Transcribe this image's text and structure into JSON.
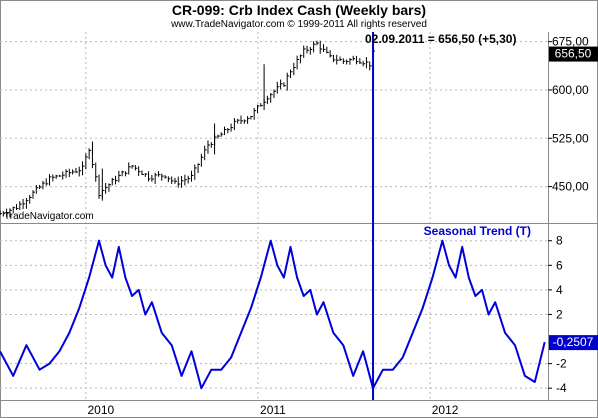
{
  "header": {
    "title": "CR-099:  Crb Index Cash  (Weekly bars)",
    "copyright": "www.TradeNavigator.com © 1999-2011 All rights reserved"
  },
  "watermark": "TradeNavigator.com",
  "cursor_readout": "02.09.2011 = 656,50 (+5,30)",
  "colors": {
    "price": "#000000",
    "seasonal": "#0000dd",
    "cursor": "#0000cc",
    "price_badge": "#000000",
    "seasonal_badge": "#0000cc",
    "grid": "#b8b8b8",
    "background": "#ffffff"
  },
  "chart_data": [
    {
      "type": "bar",
      "subtype": "weekly-hlc-bars",
      "title": "CR-099:  Crb Index Cash  (Weekly bars)",
      "ylim": [
        395,
        690
      ],
      "y_ticks": [
        "675,00",
        "600,00",
        "525,00",
        "450,00"
      ],
      "y_tick_values": [
        675,
        600,
        525,
        450
      ],
      "last_value_label": "656,50",
      "last_value": 656.5,
      "grid": true,
      "series": [
        {
          "name": "",
          "x_anchor": [
            "2009-07-03",
            "2009-08-07",
            "2009-09-11",
            "2009-10-16",
            "2009-11-20",
            "2009-12-25",
            "2010-01-08",
            "2010-01-29",
            "2010-03-05",
            "2010-04-09",
            "2010-05-14",
            "2010-06-18",
            "2010-07-09",
            "2010-08-13",
            "2010-09-17",
            "2010-10-22",
            "2010-11-12",
            "2010-12-17",
            "2011-01-21",
            "2011-02-25",
            "2011-03-11",
            "2011-04-08",
            "2011-05-06",
            "2011-06-03",
            "2011-07-01",
            "2011-07-29",
            "2011-08-26",
            "2011-09-02"
          ],
          "close_anchor": [
            408,
            418,
            440,
            462,
            470,
            478,
            510,
            440,
            462,
            482,
            465,
            468,
            455,
            465,
            515,
            535,
            548,
            560,
            590,
            610,
            630,
            660,
            672,
            650,
            645,
            648,
            640,
            656.5
          ]
        }
      ]
    },
    {
      "type": "line",
      "title": "Seasonal Trend (T)",
      "ylim": [
        -4.8,
        9.2
      ],
      "y_ticks": [
        "8",
        "6",
        "4",
        "2",
        "-2",
        "-4"
      ],
      "y_tick_values": [
        8,
        6,
        4,
        2,
        -2,
        -4
      ],
      "last_value_label": "-0,2507",
      "last_value": -0.2507,
      "grid": true,
      "series": [
        {
          "name": "Seasonal Trend (T)",
          "x": [
            "2009-07-03",
            "2009-07-31",
            "2009-08-28",
            "2009-09-25",
            "2009-10-16",
            "2009-11-06",
            "2009-11-27",
            "2009-12-18",
            "2010-01-08",
            "2010-01-29",
            "2010-02-12",
            "2010-02-26",
            "2010-03-12",
            "2010-03-26",
            "2010-04-09",
            "2010-04-23",
            "2010-05-07",
            "2010-05-21",
            "2010-06-11",
            "2010-07-02",
            "2010-07-23",
            "2010-08-13",
            "2010-09-03",
            "2010-09-24",
            "2010-10-15",
            "2010-11-05",
            "2010-11-26",
            "2010-12-17",
            "2011-01-07",
            "2011-01-28",
            "2011-02-11",
            "2011-02-25",
            "2011-03-11",
            "2011-03-25",
            "2011-04-08",
            "2011-04-22",
            "2011-05-06",
            "2011-05-20",
            "2011-06-10",
            "2011-07-01",
            "2011-07-22",
            "2011-08-12",
            "2011-09-02",
            "2011-09-23",
            "2011-10-14",
            "2011-11-04",
            "2011-11-25",
            "2011-12-16",
            "2012-01-06",
            "2012-01-27",
            "2012-02-10",
            "2012-02-24",
            "2012-03-09",
            "2012-03-23",
            "2012-04-06",
            "2012-04-20",
            "2012-05-04",
            "2012-05-18",
            "2012-06-08",
            "2012-06-29",
            "2012-07-20",
            "2012-08-10",
            "2012-08-31"
          ],
          "y": [
            -1.0,
            -3.0,
            -0.5,
            -2.5,
            -2.0,
            -1.0,
            0.5,
            2.5,
            5.0,
            8.0,
            6.0,
            5.0,
            7.5,
            5.0,
            3.5,
            4.0,
            2.0,
            3.0,
            0.5,
            -0.5,
            -3.0,
            -1.0,
            -4.0,
            -2.5,
            -2.5,
            -1.5,
            0.5,
            2.5,
            5.0,
            8.0,
            6.0,
            5.0,
            7.5,
            5.0,
            3.5,
            4.0,
            2.0,
            3.0,
            0.5,
            -0.5,
            -3.0,
            -1.0,
            -4.0,
            -2.5,
            -2.5,
            -1.5,
            0.5,
            2.5,
            5.0,
            8.0,
            6.0,
            5.0,
            7.5,
            5.0,
            3.5,
            4.0,
            2.0,
            3.0,
            0.5,
            -0.5,
            -3.0,
            -3.5,
            -0.25
          ]
        }
      ]
    }
  ],
  "x_axis": {
    "labels": [
      "2010",
      "2011",
      "2012"
    ],
    "label_dates": [
      "2010-01-01",
      "2011-01-01",
      "2012-01-01"
    ],
    "cursor_date": "2011-09-02"
  }
}
